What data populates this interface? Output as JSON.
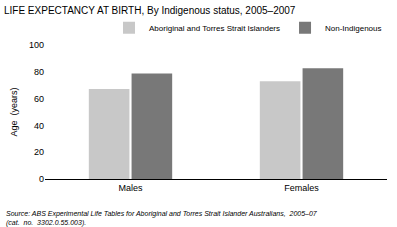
{
  "chart_data": {
    "type": "bar",
    "title": "LIFE EXPECTANCY AT BIRTH, By Indigenous status, 2005–2007",
    "y_label": "Age  (years)",
    "categories": [
      "Males",
      "Females"
    ],
    "series": [
      {
        "name": "Aboriginal and Torres Strait Islanders",
        "color": "#c8c8c8",
        "values": [
          67.2,
          72.9
        ]
      },
      {
        "name": "Non-Indigenous",
        "color": "#787878",
        "values": [
          78.7,
          82.6
        ]
      }
    ],
    "ylim": [
      0,
      100
    ],
    "yticks": [
      0,
      20,
      40,
      60,
      80,
      100
    ],
    "grid": false,
    "legend": "upper right",
    "annotations": [
      [
        "Source: ABS Experimental Life Tables for Aboriginal and Torres Strait Islander Australians,  2005–07",
        "(cat.  no.  3302.0.55.003)."
      ]
    ]
  }
}
